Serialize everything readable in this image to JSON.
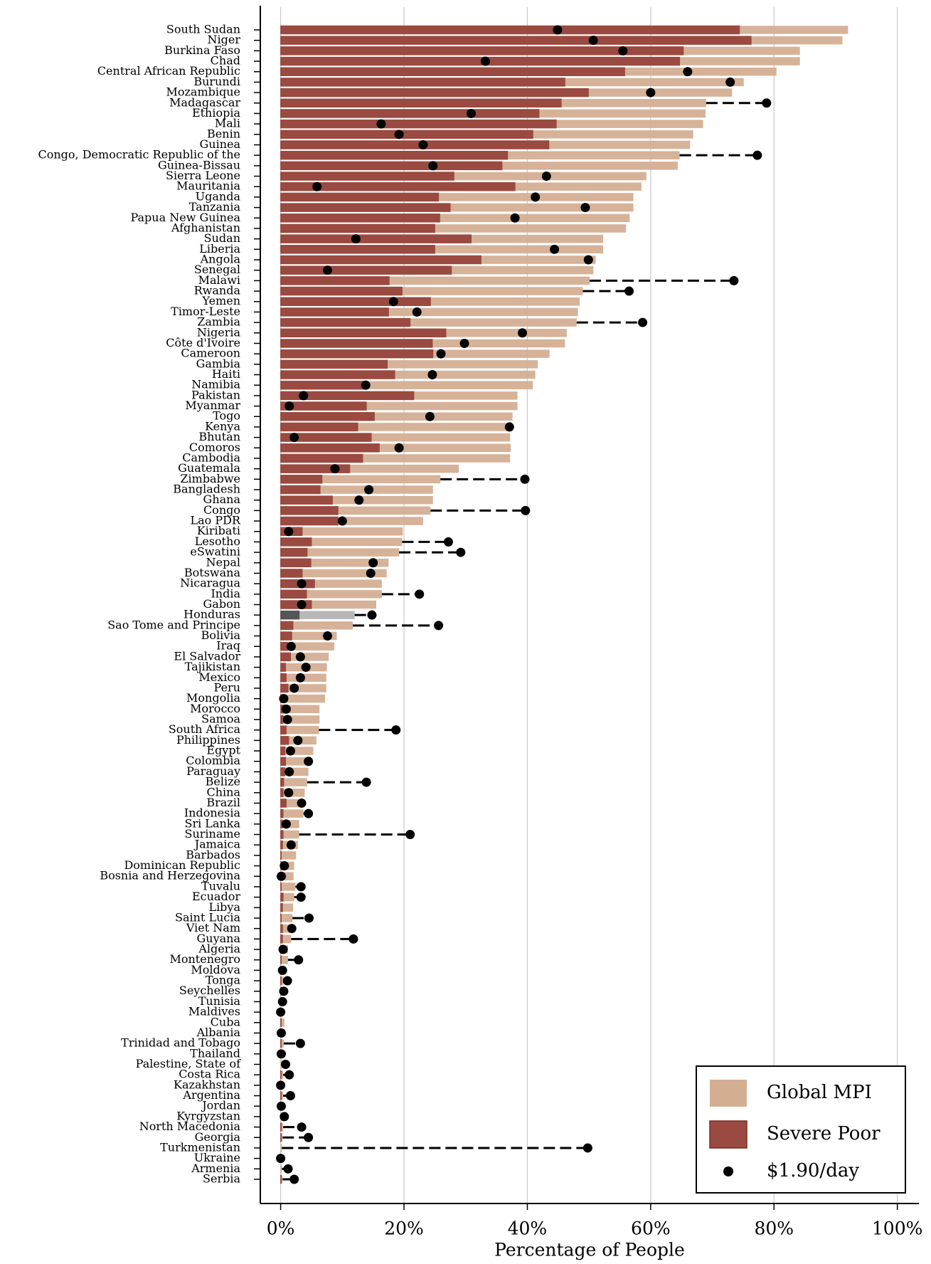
{
  "chart_data": {
    "type": "barh",
    "xlabel": "Percentage of People",
    "xlim": [
      -3.3,
      103.5
    ],
    "xticks": [
      {
        "value": 0,
        "label": "0%"
      },
      {
        "value": 20,
        "label": "20%"
      },
      {
        "value": 40,
        "label": "40%"
      },
      {
        "value": 60,
        "label": "60%"
      },
      {
        "value": 80,
        "label": "80%"
      },
      {
        "value": 100,
        "label": "100%"
      }
    ],
    "grid": true,
    "legend": "lower right",
    "highlight_index": 56,
    "highlight_colors": [
      "#b3b3b3",
      "#555555"
    ],
    "categories": [
      "South Sudan",
      "Niger",
      "Burkina Faso",
      "Chad",
      "Central African Republic",
      "Burundi",
      "Mozambique",
      "Madagascar",
      "Ethiopia",
      "Mali",
      "Benin",
      "Guinea",
      "Congo, Democratic Republic of the",
      "Guinea-Bissau",
      "Sierra Leone",
      "Mauritania",
      "Uganda",
      "Tanzania",
      "Papua New Guinea",
      "Afghanistan",
      "Sudan",
      "Liberia",
      "Angola",
      "Senegal",
      "Malawi",
      "Rwanda",
      "Yemen",
      "Timor-Leste",
      "Zambia",
      "Nigeria",
      "Côte d'Ivoire",
      "Cameroon",
      "Gambia",
      "Haiti",
      "Namibia",
      "Pakistan",
      "Myanmar",
      "Togo",
      "Kenya",
      "Bhutan",
      "Comoros",
      "Cambodia",
      "Guatemala",
      "Zimbabwe",
      "Bangladesh",
      "Ghana",
      "Congo",
      "Lao PDR",
      "Kiribati",
      "Lesotho",
      "eSwatini",
      "Nepal",
      "Botswana",
      "Nicaragua",
      "India",
      "Gabon",
      "Honduras",
      "Sao Tome and Principe",
      "Bolivia",
      "Iraq",
      "El Salvador",
      "Tajikistan",
      "Mexico",
      "Peru",
      "Mongolia",
      "Morocco",
      "Samoa",
      "South Africa",
      "Philippines",
      "Egypt",
      "Colombia",
      "Paraguay",
      "Belize",
      "China",
      "Brazil",
      "Indonesia",
      "Sri Lanka",
      "Suriname",
      "Jamaica",
      "Barbados",
      "Dominican Republic",
      "Bosnia and Herzegovina",
      "Tuvalu",
      "Ecuador",
      "Libya",
      "Saint Lucia",
      "Viet Nam",
      "Guyana",
      "Algeria",
      "Montenegro",
      "Moldova",
      "Tonga",
      "Seychelles",
      "Tunisia",
      "Maldives",
      "Cuba",
      "Albania",
      "Trinidad and Tobago",
      "Thailand",
      "Palestine, State of",
      "Costa Rica",
      "Kazakhstan",
      "Argentina",
      "Jordan",
      "Kyrgyzstan",
      "North Macedonia",
      "Georgia",
      "Turkmenistan",
      "Ukraine",
      "Armenia",
      "Serbia"
    ],
    "series": [
      {
        "name": "Global MPI",
        "color": "#d4ae92",
        "values": [
          92.0,
          91.1,
          84.2,
          84.2,
          80.4,
          75.1,
          73.2,
          69.0,
          68.9,
          68.5,
          66.9,
          66.4,
          64.7,
          64.4,
          59.3,
          58.5,
          57.2,
          57.2,
          56.6,
          56.0,
          52.3,
          52.3,
          51.1,
          50.7,
          50.1,
          49.0,
          48.5,
          48.2,
          48.0,
          46.4,
          46.1,
          43.6,
          41.7,
          41.3,
          40.9,
          38.4,
          38.4,
          37.6,
          37.3,
          37.2,
          37.3,
          37.2,
          28.9,
          25.9,
          24.7,
          24.7,
          24.3,
          23.1,
          19.8,
          19.7,
          19.2,
          17.5,
          17.2,
          16.4,
          16.4,
          15.5,
          12.0,
          11.7,
          9.1,
          8.7,
          7.8,
          7.5,
          7.4,
          7.4,
          7.2,
          6.3,
          6.3,
          6.2,
          5.8,
          5.3,
          5.0,
          4.5,
          4.3,
          3.9,
          3.8,
          3.7,
          3.0,
          3.0,
          2.8,
          2.5,
          2.2,
          2.1,
          2.4,
          2.2,
          2.0,
          1.9,
          1.7,
          1.7,
          1.2,
          1.2,
          0.5,
          0.5,
          0.4,
          0.4,
          0.3,
          0.6,
          0.3,
          0.5,
          0.1,
          0.3,
          0.4,
          0.0,
          0.4,
          0.3,
          0.3,
          0.4,
          0.3,
          0.2,
          0.1,
          0.2,
          0.3
        ]
      },
      {
        "name": "Severe Poor",
        "color": "#9a4a40",
        "values": [
          74.4,
          76.3,
          65.3,
          64.7,
          55.8,
          46.1,
          49.9,
          45.5,
          41.9,
          44.7,
          40.9,
          43.5,
          36.8,
          35.9,
          28.1,
          38.0,
          25.6,
          27.5,
          25.8,
          25.0,
          30.9,
          25.0,
          32.5,
          27.7,
          17.6,
          19.7,
          24.3,
          17.5,
          21.0,
          26.8,
          24.6,
          24.7,
          17.3,
          18.5,
          13.7,
          21.6,
          13.9,
          15.2,
          12.5,
          14.7,
          16.0,
          13.3,
          11.2,
          6.7,
          6.4,
          8.4,
          9.3,
          9.3,
          3.5,
          5.0,
          4.3,
          4.9,
          3.5,
          5.5,
          4.2,
          5.0,
          3.0,
          2.0,
          1.8,
          1.2,
          1.6,
          0.8,
          0.9,
          1.2,
          0.7,
          0.7,
          0.4,
          0.9,
          1.3,
          0.7,
          0.8,
          0.7,
          0.5,
          0.4,
          0.9,
          0.4,
          0.3,
          0.4,
          0.3,
          0.1,
          0.3,
          0.1,
          0.1,
          0.4,
          0.3,
          0.1,
          0.3,
          0.3,
          0.1,
          0.1,
          0.1,
          0.1,
          0.1,
          0.1,
          0.0,
          0.1,
          0.0,
          0.1,
          0.0,
          0.0,
          0.1,
          0.0,
          0.1,
          0.0,
          0.0,
          0.1,
          0.1,
          0.0,
          0.0,
          0.0,
          0.1
        ]
      },
      {
        "name": "$1.90/day",
        "color": "#000000",
        "values": [
          44.9,
          50.7,
          55.5,
          33.2,
          66.0,
          72.9,
          60.0,
          78.8,
          30.9,
          16.3,
          19.2,
          23.1,
          77.3,
          24.7,
          43.1,
          5.9,
          41.3,
          49.4,
          38.0,
          null,
          12.2,
          44.4,
          49.9,
          7.6,
          73.5,
          56.5,
          18.3,
          22.1,
          58.7,
          39.2,
          29.8,
          26.0,
          null,
          24.6,
          13.8,
          3.7,
          1.4,
          24.2,
          37.1,
          2.2,
          19.2,
          null,
          8.8,
          39.6,
          14.3,
          12.7,
          39.7,
          10.0,
          1.3,
          27.2,
          29.2,
          15.0,
          14.6,
          3.4,
          22.5,
          3.4,
          14.8,
          25.6,
          7.6,
          1.7,
          3.2,
          4.1,
          3.2,
          2.2,
          0.5,
          0.9,
          1.1,
          18.7,
          2.8,
          1.6,
          4.5,
          1.4,
          13.9,
          1.3,
          3.4,
          4.5,
          0.9,
          21.0,
          1.7,
          null,
          0.6,
          0.1,
          3.3,
          3.3,
          null,
          4.6,
          1.8,
          11.8,
          0.4,
          2.9,
          0.3,
          1.1,
          0.5,
          0.3,
          0.0,
          null,
          0.1,
          3.2,
          0.1,
          0.8,
          1.4,
          0.0,
          1.6,
          0.1,
          0.6,
          3.4,
          4.5,
          49.8,
          0.0,
          1.2,
          2.2
        ]
      }
    ]
  }
}
